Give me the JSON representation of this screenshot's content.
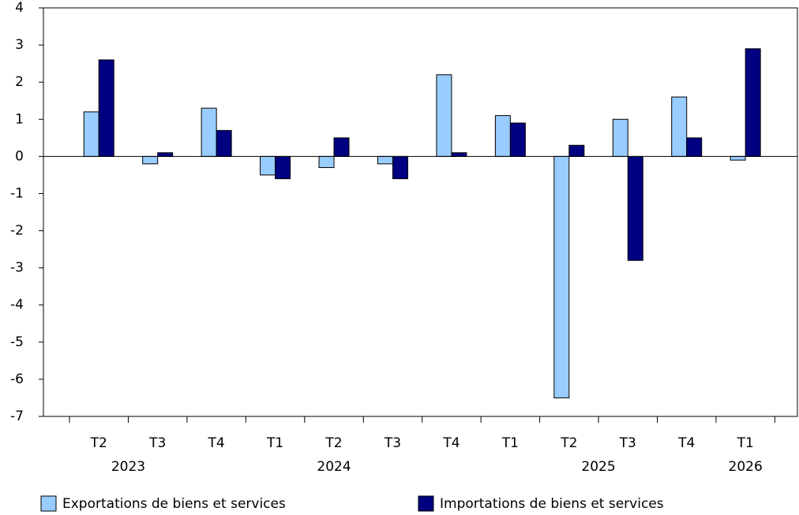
{
  "chart_data": {
    "type": "bar",
    "categories": [
      "T2",
      "T3",
      "T4",
      "T1",
      "T2",
      "T3",
      "T4",
      "T1",
      "T2",
      "T3",
      "T4",
      "T1"
    ],
    "groups": [
      {
        "label": "2023",
        "start": 0,
        "end": 1
      },
      {
        "label": "2024",
        "start": 2,
        "end": 6
      },
      {
        "label": "2025",
        "start": 7,
        "end": 10
      },
      {
        "label": "2026",
        "start": 11,
        "end": 11
      }
    ],
    "series": [
      {
        "name": "Exportations de biens et services",
        "color": "#99ccff",
        "values": [
          1.2,
          -0.2,
          1.3,
          -0.5,
          -0.3,
          -0.2,
          2.2,
          1.1,
          -6.5,
          1.0,
          1.6,
          -0.1
        ]
      },
      {
        "name": "Importations de biens et services",
        "color": "#000080",
        "values": [
          2.6,
          0.1,
          0.7,
          -0.6,
          0.5,
          -0.6,
          0.1,
          0.9,
          0.3,
          -2.8,
          0.5,
          2.9
        ]
      }
    ],
    "ylim": [
      -7,
      4
    ],
    "yticks": [
      -7,
      -6,
      -5,
      -4,
      -3,
      -2,
      -1,
      0,
      1,
      2,
      3,
      4
    ],
    "grid": false
  }
}
